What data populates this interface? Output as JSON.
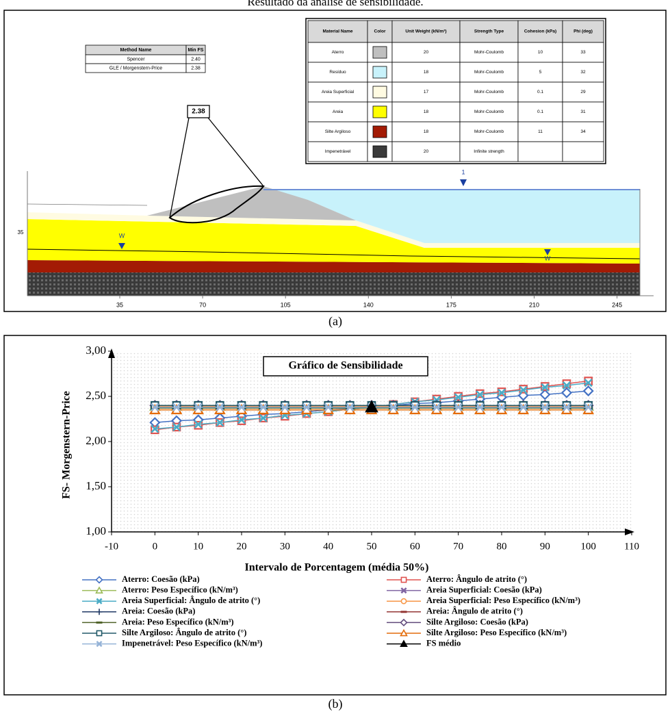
{
  "caption": "Resultado da análise de sensibilidade.",
  "panel_a": {
    "label": "(a)",
    "fs_label": "2.38",
    "method_table": {
      "headers": [
        "Method Name",
        "Min FS"
      ],
      "rows": [
        [
          "Spencer",
          "2.40"
        ],
        [
          "GLE / Morgenstern-Price",
          "2.38"
        ]
      ]
    },
    "material_table": {
      "headers": [
        "Material Name",
        "Color",
        "Unit Weight (kN/m³)",
        "Strength Type",
        "Cohesion (kPa)",
        "Phi (deg)"
      ],
      "rows": [
        {
          "name": "Aterro",
          "color": "#bfbfbf",
          "unit_weight": 20,
          "strength_type": "Mohr-Coulomb",
          "cohesion": 10,
          "phi": 33
        },
        {
          "name": "Resíduo",
          "color": "#c8f2fb",
          "unit_weight": 18,
          "strength_type": "Mohr-Coulomb",
          "cohesion": 5,
          "phi": 32
        },
        {
          "name": "Areia Superficial",
          "color": "#fffbe2",
          "unit_weight": 17,
          "strength_type": "Mohr-Coulomb",
          "cohesion": 0.1,
          "phi": 29
        },
        {
          "name": "Areia",
          "color": "#ffff00",
          "unit_weight": 18,
          "strength_type": "Mohr-Coulomb",
          "cohesion": 0.1,
          "phi": 31
        },
        {
          "name": "Silte Argiloso",
          "color": "#a31b05",
          "unit_weight": 18,
          "strength_type": "Mohr-Coulomb",
          "cohesion": 11,
          "phi": 34
        },
        {
          "name": "Impenetrável",
          "color": "#3a3a3a",
          "unit_weight": 20,
          "strength_type": "Infinite strength"
        }
      ]
    },
    "x_ticks": [
      35,
      70,
      105,
      140,
      175,
      210,
      245
    ],
    "y_tick": "35",
    "water_labels": [
      "W",
      "1",
      "W"
    ]
  },
  "panel_b_label": "(b)",
  "chart_data": {
    "type": "line",
    "title": "Gráfico de Sensibilidade",
    "x_label": "Intervalo de Porcentagem (média  50%)",
    "y_label": "FS- Morgenstern-Price",
    "xlim": [
      -10,
      110
    ],
    "xticks": [
      -10,
      0,
      10,
      20,
      30,
      40,
      50,
      60,
      70,
      80,
      90,
      100,
      110
    ],
    "ylim": [
      1,
      3
    ],
    "yticks": [
      {
        "value": 1,
        "label": "1,00"
      },
      {
        "value": 1.5,
        "label": "1,50"
      },
      {
        "value": 2,
        "label": "2,00"
      },
      {
        "value": 2.5,
        "label": "2,50"
      },
      {
        "value": 3,
        "label": "3,00"
      }
    ],
    "legend": "bottom",
    "x": [
      0,
      5,
      10,
      15,
      20,
      25,
      30,
      35,
      40,
      45,
      50,
      55,
      60,
      65,
      70,
      75,
      80,
      85,
      90,
      95,
      100
    ],
    "series": [
      {
        "name": "Aterro: Coesão (kPa)",
        "color": "#4472c4",
        "marker": "diamond",
        "values": [
          2.21,
          2.23,
          2.24,
          2.26,
          2.28,
          2.3,
          2.31,
          2.33,
          2.35,
          2.36,
          2.38,
          2.4,
          2.42,
          2.43,
          2.45,
          2.47,
          2.49,
          2.51,
          2.52,
          2.54,
          2.56
        ]
      },
      {
        "name": "Aterro: Ângulo de atrito (°)",
        "color": "#e0524f",
        "marker": "square",
        "values": [
          2.13,
          2.16,
          2.18,
          2.21,
          2.23,
          2.26,
          2.28,
          2.31,
          2.33,
          2.36,
          2.38,
          2.41,
          2.44,
          2.47,
          2.5,
          2.53,
          2.55,
          2.58,
          2.61,
          2.64,
          2.67
        ]
      },
      {
        "name": "Aterro: Peso Específico (kN/m³)",
        "color": "#9bbb59",
        "marker": "triangle",
        "values": [
          2.39,
          2.39,
          2.39,
          2.39,
          2.39,
          2.39,
          2.39,
          2.39,
          2.39,
          2.39,
          2.39,
          2.39,
          2.39,
          2.39,
          2.39,
          2.39,
          2.39,
          2.39,
          2.39,
          2.39,
          2.39
        ]
      },
      {
        "name": "Areia Superficial: Coesão (kPa)",
        "color": "#8064a2",
        "marker": "x",
        "values": [
          2.4,
          2.4,
          2.4,
          2.4,
          2.4,
          2.4,
          2.4,
          2.4,
          2.4,
          2.4,
          2.4,
          2.4,
          2.4,
          2.4,
          2.4,
          2.4,
          2.4,
          2.4,
          2.4,
          2.4,
          2.4
        ]
      },
      {
        "name": "Areia Superficial: Ângulo de atrito (°)",
        "color": "#4bacc6",
        "marker": "x",
        "values": [
          2.14,
          2.16,
          2.19,
          2.21,
          2.24,
          2.26,
          2.29,
          2.31,
          2.33,
          2.36,
          2.38,
          2.41,
          2.44,
          2.46,
          2.49,
          2.52,
          2.54,
          2.57,
          2.6,
          2.62,
          2.65
        ]
      },
      {
        "name": "Areia Superficial: Peso Específico (kN/m³)",
        "color": "#f79646",
        "marker": "circle",
        "values": [
          2.39,
          2.39,
          2.39,
          2.39,
          2.39,
          2.39,
          2.39,
          2.39,
          2.39,
          2.39,
          2.39,
          2.39,
          2.39,
          2.39,
          2.39,
          2.39,
          2.39,
          2.39,
          2.39,
          2.39,
          2.39
        ]
      },
      {
        "name": "Areia: Coesão (kPa)",
        "color": "#1f3864",
        "marker": "plus",
        "values": [
          2.38,
          2.38,
          2.38,
          2.38,
          2.38,
          2.38,
          2.38,
          2.38,
          2.38,
          2.38,
          2.38,
          2.38,
          2.38,
          2.38,
          2.38,
          2.38,
          2.38,
          2.38,
          2.38,
          2.38,
          2.38
        ]
      },
      {
        "name": "Areia: Ângulo de atrito (°)",
        "color": "#943634",
        "marker": "dash",
        "values": [
          2.38,
          2.38,
          2.38,
          2.38,
          2.38,
          2.38,
          2.38,
          2.38,
          2.38,
          2.38,
          2.38,
          2.38,
          2.38,
          2.38,
          2.38,
          2.38,
          2.38,
          2.38,
          2.38,
          2.38,
          2.38
        ]
      },
      {
        "name": "Areia: Peso Específico (kN/m³)",
        "color": "#4f6228",
        "marker": "dash",
        "values": [
          2.37,
          2.37,
          2.37,
          2.37,
          2.37,
          2.37,
          2.37,
          2.37,
          2.37,
          2.37,
          2.37,
          2.37,
          2.37,
          2.37,
          2.37,
          2.37,
          2.37,
          2.37,
          2.37,
          2.37,
          2.37
        ]
      },
      {
        "name": "Silte Argiloso: Coesão (kPa)",
        "color": "#5f497a",
        "marker": "diamond",
        "values": [
          2.4,
          2.4,
          2.4,
          2.4,
          2.4,
          2.4,
          2.4,
          2.4,
          2.4,
          2.4,
          2.4,
          2.4,
          2.4,
          2.4,
          2.4,
          2.4,
          2.4,
          2.4,
          2.4,
          2.4,
          2.4
        ]
      },
      {
        "name": "Silte Argiloso: Ângulo de atrito (°)",
        "color": "#215968",
        "marker": "square",
        "values": [
          2.4,
          2.4,
          2.4,
          2.4,
          2.4,
          2.4,
          2.4,
          2.4,
          2.4,
          2.4,
          2.4,
          2.4,
          2.4,
          2.4,
          2.4,
          2.4,
          2.4,
          2.4,
          2.4,
          2.4,
          2.4
        ]
      },
      {
        "name": "Silte Argiloso: Peso Específico (kN/m³)",
        "color": "#e46c0a",
        "marker": "triangle",
        "values": [
          2.35,
          2.35,
          2.35,
          2.35,
          2.35,
          2.35,
          2.35,
          2.35,
          2.35,
          2.35,
          2.35,
          2.35,
          2.35,
          2.35,
          2.35,
          2.35,
          2.35,
          2.35,
          2.35,
          2.35,
          2.35
        ]
      },
      {
        "name": "Impenetrável: Peso Específico (kN/m³)",
        "color": "#95b3d7",
        "marker": "x",
        "values": [
          2.38,
          2.38,
          2.38,
          2.38,
          2.38,
          2.38,
          2.38,
          2.38,
          2.38,
          2.38,
          2.38,
          2.38,
          2.38,
          2.38,
          2.38,
          2.38,
          2.38,
          2.38,
          2.38,
          2.38,
          2.38
        ]
      },
      {
        "name": "FS médio",
        "color": "#000000",
        "marker": "triangle-filled",
        "values": [
          null,
          null,
          null,
          null,
          null,
          null,
          null,
          null,
          null,
          null,
          2.38,
          null,
          null,
          null,
          null,
          null,
          null,
          null,
          null,
          null,
          null
        ]
      }
    ]
  }
}
